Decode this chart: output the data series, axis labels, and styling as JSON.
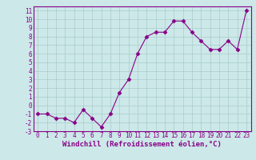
{
  "x": [
    0,
    1,
    2,
    3,
    4,
    5,
    6,
    7,
    8,
    9,
    10,
    11,
    12,
    13,
    14,
    15,
    16,
    17,
    18,
    19,
    20,
    21,
    22,
    23
  ],
  "y": [
    -1,
    -1,
    -1.5,
    -1.5,
    -2,
    -0.5,
    -1.5,
    -2.5,
    -1,
    1.5,
    3,
    6,
    8,
    8.5,
    8.5,
    9.8,
    9.8,
    8.5,
    7.5,
    6.5,
    6.5,
    7.5,
    6.5,
    11
  ],
  "line_color": "#880088",
  "marker": "D",
  "marker_size": 2.5,
  "bg_color": "#cce8e8",
  "grid_color": "#aacccc",
  "xlabel": "Windchill (Refroidissement éolien,°C)",
  "xlabel_color": "#880088",
  "tick_color": "#880088",
  "ylim": [
    -3,
    11.5
  ],
  "xlim": [
    -0.5,
    23.5
  ],
  "yticks": [
    -3,
    -2,
    -1,
    0,
    1,
    2,
    3,
    4,
    5,
    6,
    7,
    8,
    9,
    10,
    11
  ],
  "xticks": [
    0,
    1,
    2,
    3,
    4,
    5,
    6,
    7,
    8,
    9,
    10,
    11,
    12,
    13,
    14,
    15,
    16,
    17,
    18,
    19,
    20,
    21,
    22,
    23
  ],
  "font_size": 5.5,
  "xlabel_fontsize": 6.5
}
